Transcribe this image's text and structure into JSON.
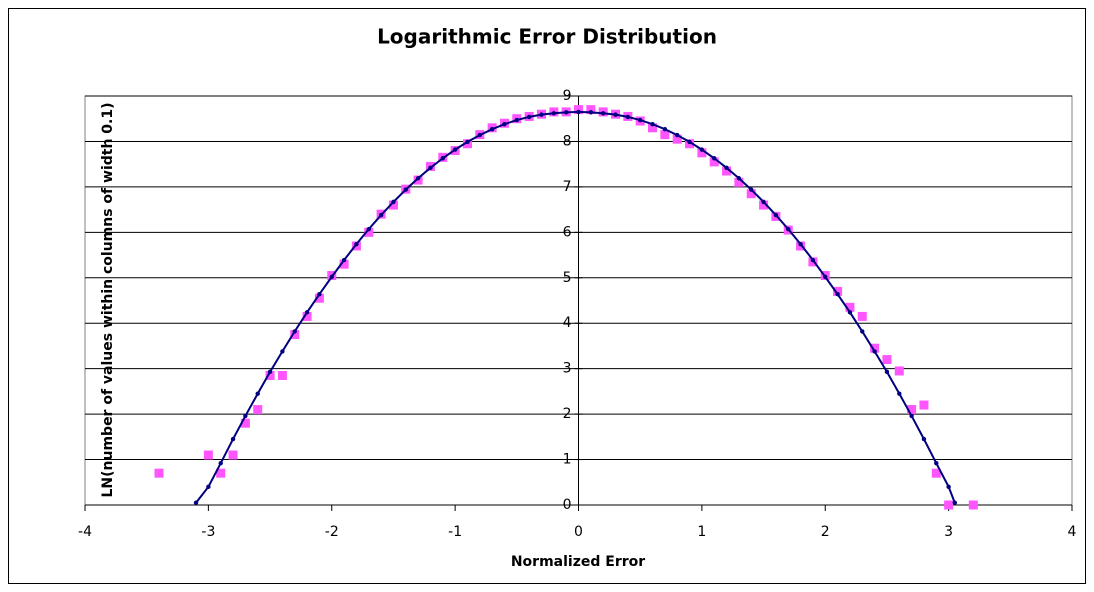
{
  "chart_data": {
    "type": "scatter",
    "title": "Logarithmic Error Distribution",
    "xlabel": "Normalized Error",
    "ylabel": "LN(number of values within columns of width 0.1)",
    "xlim": [
      -4,
      4
    ],
    "ylim": [
      0,
      9
    ],
    "xticks": [
      -4,
      -3,
      -2,
      -1,
      0,
      1,
      2,
      3,
      4
    ],
    "yticks": [
      0,
      1,
      2,
      3,
      4,
      5,
      6,
      7,
      8,
      9
    ],
    "grid": true,
    "series": [
      {
        "color": "#ff55ff",
        "marker": "square",
        "line": false,
        "x": [
          -3.4,
          -3.0,
          -2.9,
          -2.8,
          -2.7,
          -2.6,
          -2.5,
          -2.4,
          -2.3,
          -2.2,
          -2.1,
          -2.0,
          -1.9,
          -1.8,
          -1.7,
          -1.6,
          -1.5,
          -1.4,
          -1.3,
          -1.2,
          -1.1,
          -1.0,
          -0.9,
          -0.8,
          -0.7,
          -0.6,
          -0.5,
          -0.4,
          -0.3,
          -0.2,
          -0.1,
          0.0,
          0.1,
          0.2,
          0.3,
          0.4,
          0.5,
          0.6,
          0.7,
          0.8,
          0.9,
          1.0,
          1.1,
          1.2,
          1.3,
          1.4,
          1.5,
          1.6,
          1.7,
          1.8,
          1.9,
          2.0,
          2.1,
          2.2,
          2.3,
          2.4,
          2.5,
          2.6,
          2.7,
          2.8,
          2.9,
          3.0,
          3.2
        ],
        "values": [
          0.7,
          1.1,
          0.7,
          1.1,
          1.8,
          2.1,
          2.85,
          2.85,
          3.75,
          4.15,
          4.55,
          5.05,
          5.3,
          5.7,
          6.0,
          6.4,
          6.6,
          6.95,
          7.15,
          7.45,
          7.65,
          7.8,
          7.95,
          8.15,
          8.3,
          8.4,
          8.5,
          8.55,
          8.6,
          8.65,
          8.65,
          8.7,
          8.7,
          8.65,
          8.6,
          8.55,
          8.45,
          8.3,
          8.15,
          8.05,
          7.95,
          7.75,
          7.55,
          7.35,
          7.1,
          6.85,
          6.6,
          6.35,
          6.05,
          5.7,
          5.35,
          5.05,
          4.7,
          4.35,
          4.15,
          3.45,
          3.2,
          2.95,
          2.1,
          2.2,
          0.7,
          0,
          0
        ]
      },
      {
        "color": "#000080",
        "marker": "dot",
        "line": true,
        "x": [
          -3.1,
          -3.0,
          -2.9,
          -2.8,
          -2.7,
          -2.6,
          -2.5,
          -2.4,
          -2.3,
          -2.2,
          -2.1,
          -2.0,
          -1.9,
          -1.8,
          -1.7,
          -1.6,
          -1.5,
          -1.4,
          -1.3,
          -1.2,
          -1.1,
          -1.0,
          -0.9,
          -0.8,
          -0.7,
          -0.6,
          -0.5,
          -0.4,
          -0.3,
          -0.2,
          -0.1,
          0.0,
          0.1,
          0.2,
          0.3,
          0.4,
          0.5,
          0.6,
          0.7,
          0.8,
          0.9,
          1.0,
          1.1,
          1.2,
          1.3,
          1.4,
          1.5,
          1.6,
          1.7,
          1.8,
          1.9,
          2.0,
          2.1,
          2.2,
          2.3,
          2.4,
          2.5,
          2.6,
          2.7,
          2.8,
          2.9,
          3.0,
          3.05
        ],
        "values": [
          0.05,
          0.4,
          0.92,
          1.45,
          1.96,
          2.45,
          2.93,
          3.38,
          3.82,
          4.24,
          4.64,
          5.02,
          5.39,
          5.74,
          6.07,
          6.38,
          6.67,
          6.94,
          7.19,
          7.42,
          7.63,
          7.82,
          7.99,
          8.14,
          8.27,
          8.38,
          8.47,
          8.54,
          8.59,
          8.62,
          8.64,
          8.65,
          8.64,
          8.62,
          8.59,
          8.54,
          8.47,
          8.38,
          8.27,
          8.14,
          7.99,
          7.82,
          7.63,
          7.42,
          7.19,
          6.94,
          6.67,
          6.38,
          6.07,
          5.74,
          5.39,
          5.02,
          4.64,
          4.24,
          3.82,
          3.38,
          2.93,
          2.45,
          1.96,
          1.45,
          0.92,
          0.4,
          0.05
        ]
      }
    ]
  }
}
